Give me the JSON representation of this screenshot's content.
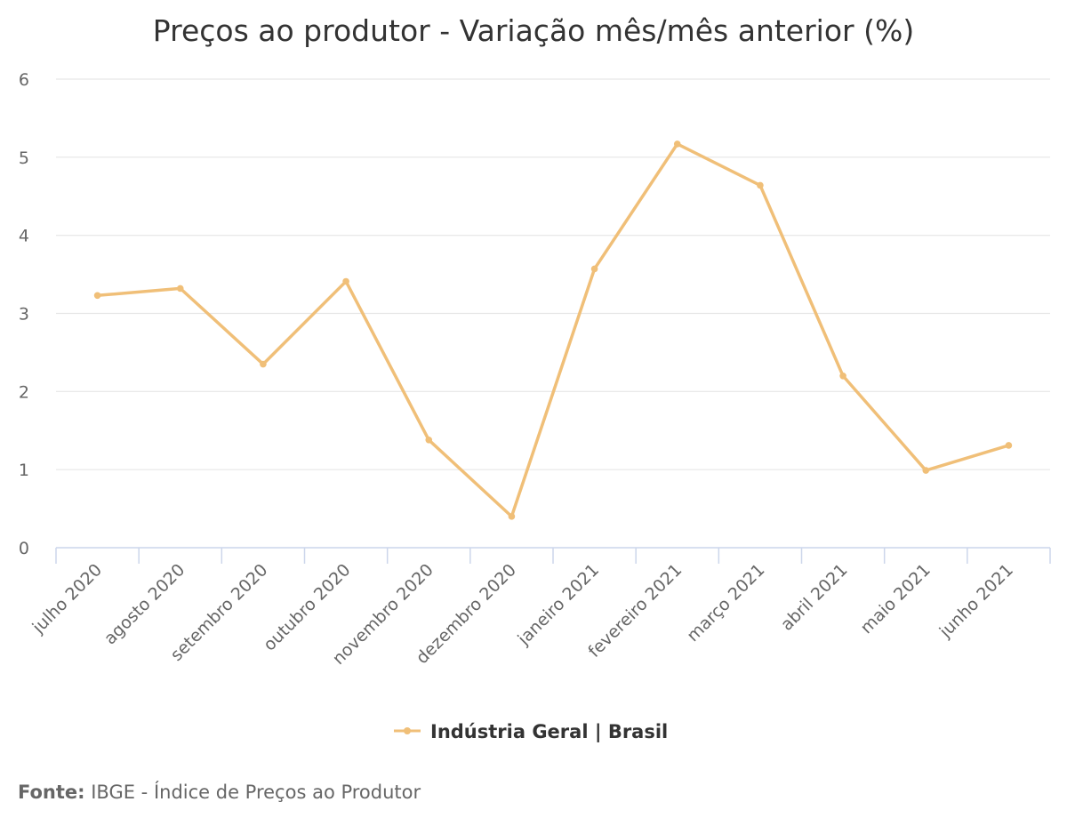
{
  "chart_data": {
    "type": "line",
    "title": "Preços ao produtor - Variação mês/mês anterior (%)",
    "xlabel": "",
    "ylabel": "",
    "ylim": [
      0,
      6
    ],
    "yticks": [
      "0",
      "1",
      "2",
      "3",
      "4",
      "5",
      "6"
    ],
    "grid": true,
    "legend_position": "bottom-center",
    "categories": [
      "julho 2020",
      "agosto 2020",
      "setembro 2020",
      "outubro 2020",
      "novembro 2020",
      "dezembro 2020",
      "janeiro 2021",
      "fevereiro 2021",
      "março 2021",
      "abril 2021",
      "maio 2021",
      "junho 2021"
    ],
    "series": [
      {
        "name": "Indústria Geral | Brasil",
        "color": "#f0bf78",
        "values": [
          3.23,
          3.32,
          2.35,
          3.41,
          1.38,
          0.4,
          3.57,
          5.17,
          4.64,
          2.2,
          0.99,
          1.31
        ]
      }
    ]
  },
  "source": {
    "label": "Fonte:",
    "text": " IBGE - Índice de Preços ao Produtor"
  },
  "colors": {
    "grid": "#e6e6e6",
    "axis": "#ccd6eb",
    "text": "#333333",
    "muted_text": "#666666"
  }
}
